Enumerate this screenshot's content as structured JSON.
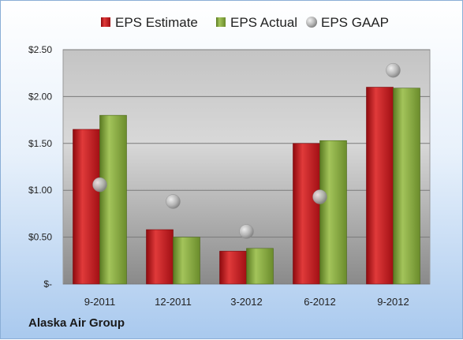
{
  "chart_data": {
    "type": "bar",
    "categories": [
      "9-2011",
      "12-2011",
      "3-2012",
      "6-2012",
      "9-2012"
    ],
    "series": [
      {
        "name": "EPS Estimate",
        "kind": "bar",
        "color": "#c0141a",
        "values": [
          1.65,
          0.58,
          0.35,
          1.5,
          2.1
        ]
      },
      {
        "name": "EPS Actual",
        "kind": "bar",
        "color": "#7ea23c",
        "values": [
          1.8,
          0.5,
          0.38,
          1.53,
          2.09
        ]
      },
      {
        "name": "EPS GAAP",
        "kind": "scatter",
        "color": "#a8a8a8",
        "values": [
          1.06,
          0.88,
          0.56,
          0.93,
          2.28
        ]
      }
    ],
    "yticks": [
      "$-",
      "$0.50",
      "$1.00",
      "$1.50",
      "$2.00",
      "$2.50"
    ],
    "ylim": [
      0,
      2.5
    ],
    "grid": true,
    "legend_position": "top"
  },
  "footer": {
    "company": "Alaska Air Group"
  }
}
